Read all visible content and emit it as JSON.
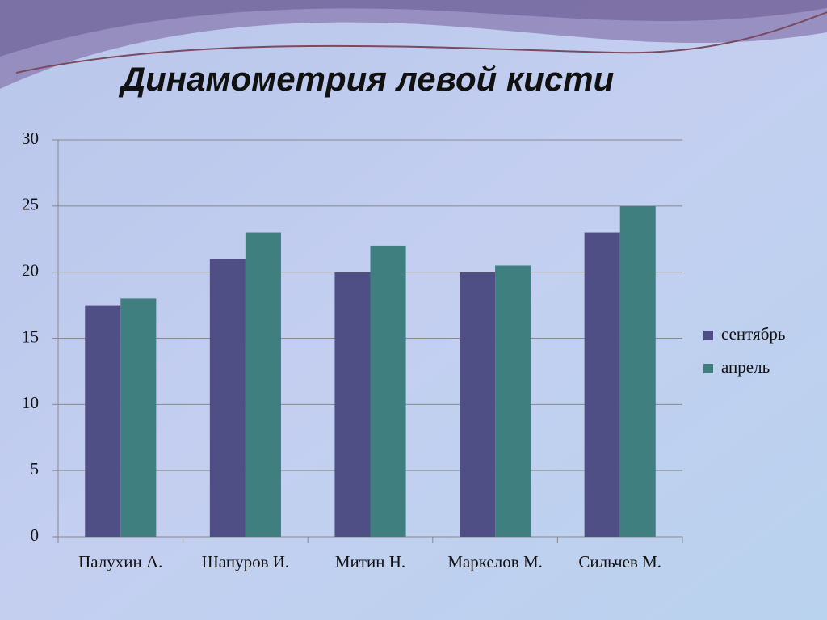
{
  "chart_data": {
    "type": "bar",
    "title": "Динамометрия левой кисти",
    "categories": [
      "Палухин А.",
      "Шапуров И.",
      "Митин Н.",
      "Маркелов М.",
      "Сильчев М."
    ],
    "series": [
      {
        "name": "сентябрь",
        "color": "#4f4f86",
        "values": [
          17.5,
          21,
          20,
          20,
          23
        ]
      },
      {
        "name": "апрель",
        "color": "#3f7f80",
        "values": [
          18,
          23,
          22,
          20.5,
          25
        ]
      }
    ],
    "ylim": [
      0,
      30
    ],
    "yticks": [
      0,
      5,
      10,
      15,
      20,
      25,
      30
    ],
    "grid": true,
    "legend": "right"
  }
}
